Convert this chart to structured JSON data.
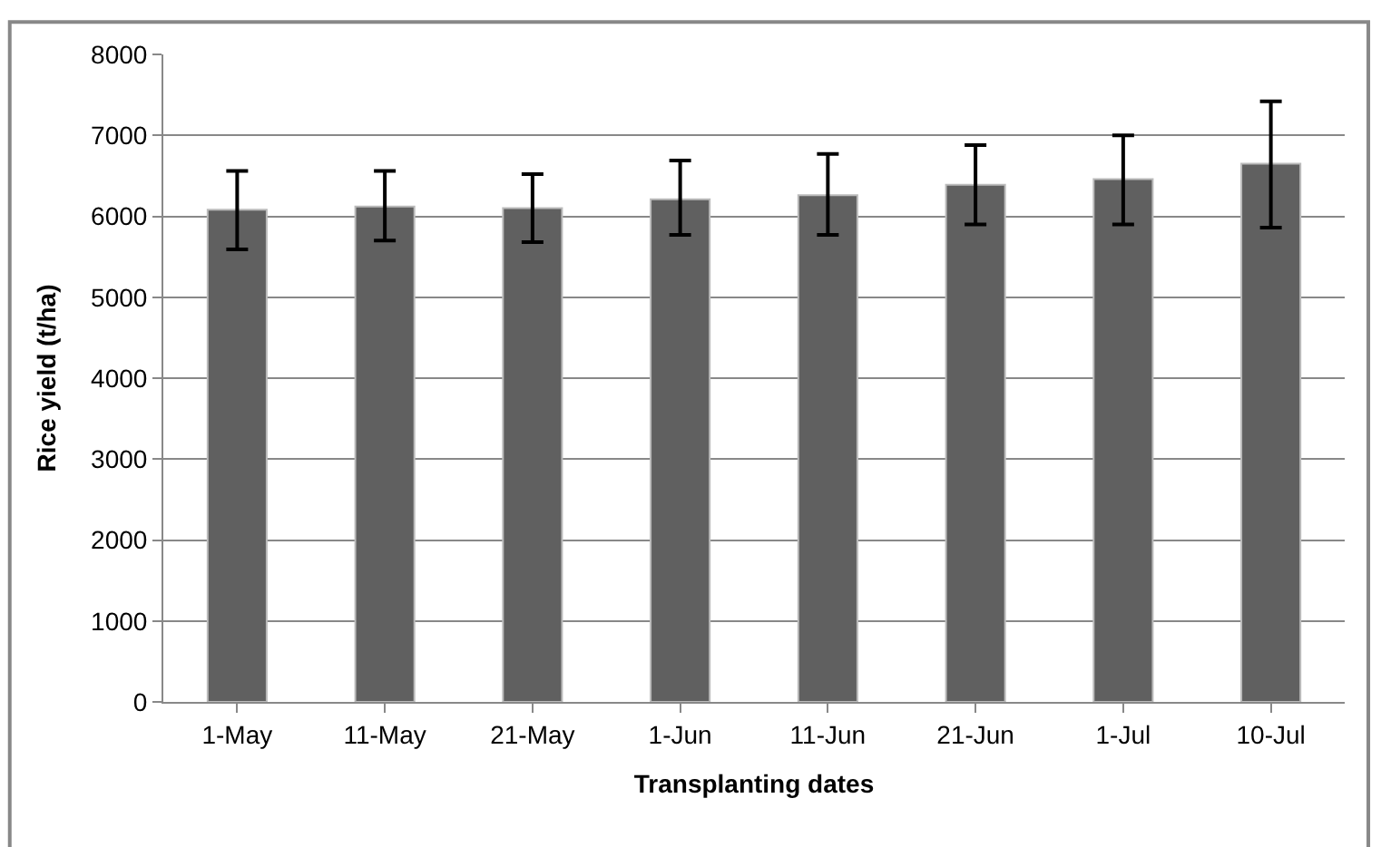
{
  "chart_data": {
    "type": "bar",
    "xlabel": "Transplanting dates",
    "ylabel": "Rice yield (t/ha)",
    "categories": [
      "1-May",
      "11-May",
      "21-May",
      "1-Jun",
      "11-Jun",
      "21-Jun",
      "1-Jul",
      "10-Jul"
    ],
    "values": [
      6080,
      6120,
      6100,
      6210,
      6260,
      6390,
      6460,
      6650
    ],
    "errors": [
      [
        5590,
        6560
      ],
      [
        5700,
        6560
      ],
      [
        5680,
        6520
      ],
      [
        5770,
        6690
      ],
      [
        5770,
        6770
      ],
      [
        5900,
        6880
      ],
      [
        5900,
        7000
      ],
      [
        5860,
        7420
      ]
    ],
    "color": "#606060",
    "ylim": [
      0,
      8000
    ],
    "yticks": [
      0,
      1000,
      2000,
      3000,
      4000,
      5000,
      6000,
      7000,
      8000
    ],
    "grid": "y"
  }
}
